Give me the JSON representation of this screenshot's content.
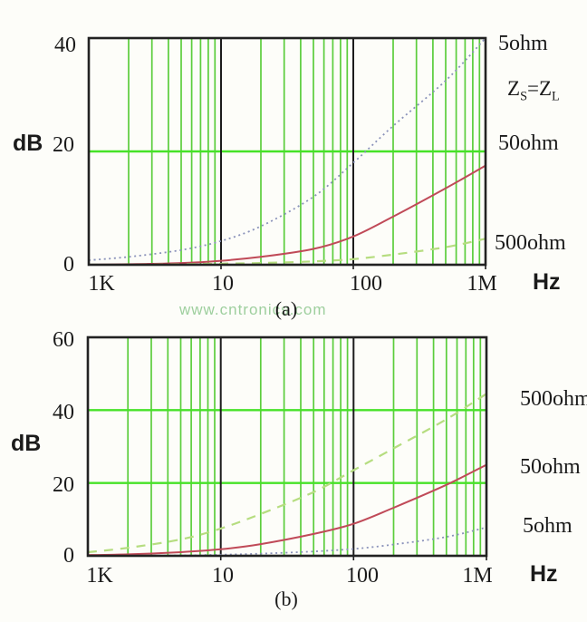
{
  "watermark": {
    "text": "www.cntronics.com",
    "color": "#9ecf9e"
  },
  "colors": {
    "grid_vertical": "#5bcd3c",
    "grid_horizontal": "#46e228",
    "decade_line": "#1c1c1c",
    "border": "#222222",
    "curve_blue": "#8a92ba",
    "curve_red": "#c04a58",
    "curve_light_green": "#b6dd80"
  },
  "chart_data": [
    {
      "id": "a",
      "type": "line",
      "caption": "(a)",
      "ylabel": "dB",
      "xlabel": "Hz",
      "x_scale": "log",
      "x_decades": 3,
      "x_tick_labels": [
        "1K",
        "10",
        "100",
        "1M"
      ],
      "ylim": [
        0,
        40
      ],
      "ytick_labels": [
        "0",
        "20",
        "40"
      ],
      "ygrid_values": [
        20
      ],
      "annotation": {
        "base1": "Z",
        "sub1": "S",
        "mid": "=",
        "base2": "Z",
        "sub2": "L"
      },
      "series": [
        {
          "name": "5ohm",
          "style": "dotted",
          "color": "#8a92ba",
          "points_kHz_dB": [
            [
              1,
              0.8
            ],
            [
              2,
              1.4
            ],
            [
              5,
              2.6
            ],
            [
              10,
              4.2
            ],
            [
              20,
              6.8
            ],
            [
              50,
              12
            ],
            [
              100,
              18
            ],
            [
              200,
              24.5
            ],
            [
              500,
              32.5
            ],
            [
              1000,
              40
            ]
          ]
        },
        {
          "name": "50ohm",
          "style": "solid",
          "color": "#c04a58",
          "points_kHz_dB": [
            [
              1,
              0
            ],
            [
              2,
              0.1
            ],
            [
              5,
              0.3
            ],
            [
              10,
              0.7
            ],
            [
              20,
              1.4
            ],
            [
              50,
              2.8
            ],
            [
              100,
              5
            ],
            [
              200,
              8.5
            ],
            [
              500,
              13.5
            ],
            [
              1000,
              17.5
            ]
          ]
        },
        {
          "name": "500ohm",
          "style": "dashed",
          "color": "#b6dd80",
          "points_kHz_dB": [
            [
              1,
              0
            ],
            [
              2,
              0
            ],
            [
              5,
              0.1
            ],
            [
              10,
              0.2
            ],
            [
              20,
              0.3
            ],
            [
              50,
              0.6
            ],
            [
              100,
              1
            ],
            [
              200,
              1.8
            ],
            [
              500,
              3.1
            ],
            [
              1000,
              4.6
            ]
          ]
        }
      ]
    },
    {
      "id": "b",
      "type": "line",
      "caption": "(b)",
      "ylabel": "dB",
      "xlabel": "Hz",
      "x_scale": "log",
      "x_decades": 3,
      "x_tick_labels": [
        "1K",
        "10",
        "100",
        "1M"
      ],
      "ylim": [
        0,
        60
      ],
      "ytick_labels": [
        "0",
        "20",
        "40",
        "60"
      ],
      "ygrid_values": [
        20,
        40
      ],
      "series": [
        {
          "name": "500ohm",
          "style": "dashed",
          "color": "#b6dd80",
          "points_kHz_dB": [
            [
              1,
              1
            ],
            [
              2,
              2.2
            ],
            [
              5,
              4.5
            ],
            [
              10,
              7.5
            ],
            [
              20,
              11.5
            ],
            [
              50,
              17.5
            ],
            [
              100,
              23.5
            ],
            [
              200,
              29.5
            ],
            [
              500,
              37.5
            ],
            [
              1000,
              44.5
            ]
          ]
        },
        {
          "name": "50ohm",
          "style": "solid",
          "color": "#c04a58",
          "points_kHz_dB": [
            [
              1,
              0.2
            ],
            [
              2,
              0.4
            ],
            [
              5,
              1
            ],
            [
              10,
              1.8
            ],
            [
              20,
              3.2
            ],
            [
              50,
              6
            ],
            [
              100,
              8.8
            ],
            [
              200,
              13.2
            ],
            [
              500,
              19.5
            ],
            [
              1000,
              25
            ]
          ]
        },
        {
          "name": "5ohm",
          "style": "dotted",
          "color": "#8a92ba",
          "points_kHz_dB": [
            [
              1,
              0
            ],
            [
              2,
              0
            ],
            [
              5,
              0.1
            ],
            [
              10,
              0.3
            ],
            [
              20,
              0.6
            ],
            [
              50,
              1.2
            ],
            [
              100,
              1.9
            ],
            [
              200,
              3.1
            ],
            [
              500,
              5.2
            ],
            [
              1000,
              7.8
            ]
          ]
        }
      ]
    }
  ]
}
